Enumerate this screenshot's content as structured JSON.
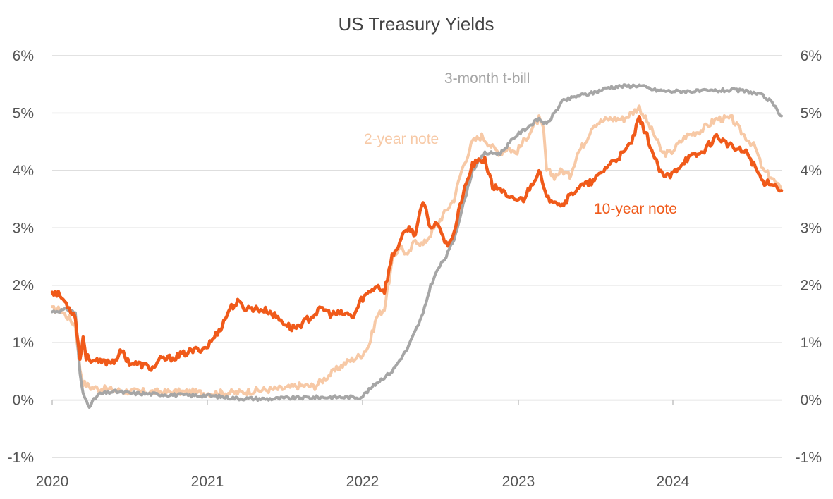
{
  "chart_data": {
    "type": "line",
    "title": "US Treasury Yields",
    "xlabel": "",
    "ylabel": "",
    "x_ticks": [
      "2020",
      "2021",
      "2022",
      "2023",
      "2024"
    ],
    "y_ticks": [
      "-1%",
      "0%",
      "1%",
      "2%",
      "3%",
      "4%",
      "5%",
      "6%"
    ],
    "ylim": [
      -1,
      6
    ],
    "xlim": [
      2020.0,
      2024.72
    ],
    "grid": true,
    "legend": "none",
    "series": [
      {
        "name": "2-year note",
        "color": "#f7c9a6",
        "points": [
          [
            2020.0,
            1.58
          ],
          [
            2020.05,
            1.57
          ],
          [
            2020.1,
            1.45
          ],
          [
            2020.15,
            1.3
          ],
          [
            2020.18,
            0.55
          ],
          [
            2020.2,
            0.3
          ],
          [
            2020.25,
            0.22
          ],
          [
            2020.4,
            0.17
          ],
          [
            2020.5,
            0.15
          ],
          [
            2020.7,
            0.14
          ],
          [
            2020.9,
            0.14
          ],
          [
            2021.0,
            0.12
          ],
          [
            2021.2,
            0.13
          ],
          [
            2021.3,
            0.16
          ],
          [
            2021.5,
            0.2
          ],
          [
            2021.6,
            0.25
          ],
          [
            2021.7,
            0.24
          ],
          [
            2021.8,
            0.45
          ],
          [
            2021.9,
            0.65
          ],
          [
            2022.0,
            0.78
          ],
          [
            2022.05,
            0.95
          ],
          [
            2022.1,
            1.45
          ],
          [
            2022.15,
            1.6
          ],
          [
            2022.2,
            2.4
          ],
          [
            2022.25,
            2.7
          ],
          [
            2022.3,
            2.5
          ],
          [
            2022.35,
            2.8
          ],
          [
            2022.4,
            2.7
          ],
          [
            2022.45,
            2.9
          ],
          [
            2022.5,
            3.1
          ],
          [
            2022.55,
            3.3
          ],
          [
            2022.6,
            3.5
          ],
          [
            2022.65,
            4.0
          ],
          [
            2022.72,
            4.5
          ],
          [
            2022.78,
            4.6
          ],
          [
            2022.85,
            4.4
          ],
          [
            2022.9,
            4.3
          ],
          [
            2022.95,
            4.4
          ],
          [
            2023.0,
            4.3
          ],
          [
            2023.05,
            4.5
          ],
          [
            2023.15,
            4.9
          ],
          [
            2023.18,
            4.7
          ],
          [
            2023.2,
            4.0
          ],
          [
            2023.25,
            3.9
          ],
          [
            2023.3,
            4.0
          ],
          [
            2023.35,
            3.9
          ],
          [
            2023.4,
            4.3
          ],
          [
            2023.45,
            4.5
          ],
          [
            2023.5,
            4.8
          ],
          [
            2023.6,
            4.9
          ],
          [
            2023.7,
            4.9
          ],
          [
            2023.8,
            5.1
          ],
          [
            2023.9,
            4.6
          ],
          [
            2023.95,
            4.3
          ],
          [
            2024.0,
            4.3
          ],
          [
            2024.1,
            4.6
          ],
          [
            2024.2,
            4.7
          ],
          [
            2024.3,
            4.9
          ],
          [
            2024.4,
            4.9
          ],
          [
            2024.45,
            4.7
          ],
          [
            2024.55,
            4.4
          ],
          [
            2024.6,
            4.0
          ],
          [
            2024.65,
            3.9
          ],
          [
            2024.72,
            3.65
          ]
        ]
      },
      {
        "name": "3-month t-bill",
        "color": "#a6a6a6",
        "points": [
          [
            2020.0,
            1.54
          ],
          [
            2020.05,
            1.56
          ],
          [
            2020.1,
            1.58
          ],
          [
            2020.15,
            1.52
          ],
          [
            2020.18,
            0.45
          ],
          [
            2020.2,
            0.1
          ],
          [
            2020.24,
            -0.1
          ],
          [
            2020.3,
            0.1
          ],
          [
            2020.4,
            0.15
          ],
          [
            2020.5,
            0.12
          ],
          [
            2020.7,
            0.1
          ],
          [
            2020.9,
            0.08
          ],
          [
            2021.0,
            0.08
          ],
          [
            2021.2,
            0.03
          ],
          [
            2021.4,
            0.02
          ],
          [
            2021.6,
            0.04
          ],
          [
            2021.8,
            0.05
          ],
          [
            2022.0,
            0.05
          ],
          [
            2022.1,
            0.3
          ],
          [
            2022.2,
            0.5
          ],
          [
            2022.3,
            0.9
          ],
          [
            2022.4,
            1.5
          ],
          [
            2022.45,
            2.0
          ],
          [
            2022.5,
            2.3
          ],
          [
            2022.55,
            2.5
          ],
          [
            2022.6,
            2.8
          ],
          [
            2022.65,
            3.3
          ],
          [
            2022.72,
            4.0
          ],
          [
            2022.8,
            4.3
          ],
          [
            2022.9,
            4.3
          ],
          [
            2023.0,
            4.6
          ],
          [
            2023.1,
            4.8
          ],
          [
            2023.15,
            4.9
          ],
          [
            2023.2,
            4.8
          ],
          [
            2023.25,
            5.0
          ],
          [
            2023.3,
            5.2
          ],
          [
            2023.4,
            5.3
          ],
          [
            2023.5,
            5.35
          ],
          [
            2023.6,
            5.45
          ],
          [
            2023.7,
            5.47
          ],
          [
            2023.8,
            5.48
          ],
          [
            2023.9,
            5.4
          ],
          [
            2024.0,
            5.38
          ],
          [
            2024.2,
            5.38
          ],
          [
            2024.4,
            5.4
          ],
          [
            2024.5,
            5.38
          ],
          [
            2024.6,
            5.3
          ],
          [
            2024.65,
            5.2
          ],
          [
            2024.72,
            4.95
          ]
        ]
      },
      {
        "name": "10-year note",
        "color": "#f05a1a",
        "points": [
          [
            2020.0,
            1.9
          ],
          [
            2020.05,
            1.82
          ],
          [
            2020.1,
            1.65
          ],
          [
            2020.15,
            1.45
          ],
          [
            2020.18,
            0.7
          ],
          [
            2020.2,
            1.1
          ],
          [
            2020.22,
            0.75
          ],
          [
            2020.3,
            0.65
          ],
          [
            2020.4,
            0.68
          ],
          [
            2020.45,
            0.85
          ],
          [
            2020.5,
            0.65
          ],
          [
            2020.6,
            0.6
          ],
          [
            2020.65,
            0.55
          ],
          [
            2020.7,
            0.7
          ],
          [
            2020.8,
            0.75
          ],
          [
            2020.9,
            0.85
          ],
          [
            2021.0,
            0.92
          ],
          [
            2021.05,
            1.1
          ],
          [
            2021.1,
            1.3
          ],
          [
            2021.15,
            1.6
          ],
          [
            2021.2,
            1.7
          ],
          [
            2021.25,
            1.6
          ],
          [
            2021.3,
            1.6
          ],
          [
            2021.4,
            1.55
          ],
          [
            2021.45,
            1.45
          ],
          [
            2021.5,
            1.35
          ],
          [
            2021.55,
            1.25
          ],
          [
            2021.6,
            1.3
          ],
          [
            2021.7,
            1.5
          ],
          [
            2021.75,
            1.6
          ],
          [
            2021.8,
            1.5
          ],
          [
            2021.9,
            1.5
          ],
          [
            2021.95,
            1.45
          ],
          [
            2022.0,
            1.75
          ],
          [
            2022.1,
            2.0
          ],
          [
            2022.15,
            1.9
          ],
          [
            2022.2,
            2.5
          ],
          [
            2022.3,
            3.0
          ],
          [
            2022.35,
            2.9
          ],
          [
            2022.4,
            3.45
          ],
          [
            2022.45,
            3.0
          ],
          [
            2022.5,
            3.1
          ],
          [
            2022.55,
            2.7
          ],
          [
            2022.6,
            2.9
          ],
          [
            2022.65,
            3.5
          ],
          [
            2022.72,
            4.1
          ],
          [
            2022.8,
            4.2
          ],
          [
            2022.85,
            3.7
          ],
          [
            2022.9,
            3.7
          ],
          [
            2022.95,
            3.5
          ],
          [
            2023.0,
            3.5
          ],
          [
            2023.05,
            3.5
          ],
          [
            2023.15,
            4.0
          ],
          [
            2023.2,
            3.5
          ],
          [
            2023.25,
            3.5
          ],
          [
            2023.3,
            3.4
          ],
          [
            2023.4,
            3.7
          ],
          [
            2023.5,
            3.8
          ],
          [
            2023.6,
            4.1
          ],
          [
            2023.7,
            4.3
          ],
          [
            2023.75,
            4.5
          ],
          [
            2023.8,
            4.9
          ],
          [
            2023.85,
            4.6
          ],
          [
            2023.9,
            4.2
          ],
          [
            2023.95,
            3.9
          ],
          [
            2024.0,
            3.9
          ],
          [
            2024.1,
            4.2
          ],
          [
            2024.2,
            4.3
          ],
          [
            2024.3,
            4.6
          ],
          [
            2024.4,
            4.4
          ],
          [
            2024.5,
            4.3
          ],
          [
            2024.6,
            3.8
          ],
          [
            2024.65,
            3.8
          ],
          [
            2024.72,
            3.65
          ]
        ]
      }
    ],
    "annotations": [
      {
        "text": "3-month t-bill",
        "series": "3-month t-bill",
        "color": "#a6a6a6"
      },
      {
        "text": "2-year note",
        "series": "2-year note",
        "color": "#f7c9a6"
      },
      {
        "text": "10-year note",
        "series": "10-year note",
        "color": "#f05a1a"
      }
    ]
  }
}
